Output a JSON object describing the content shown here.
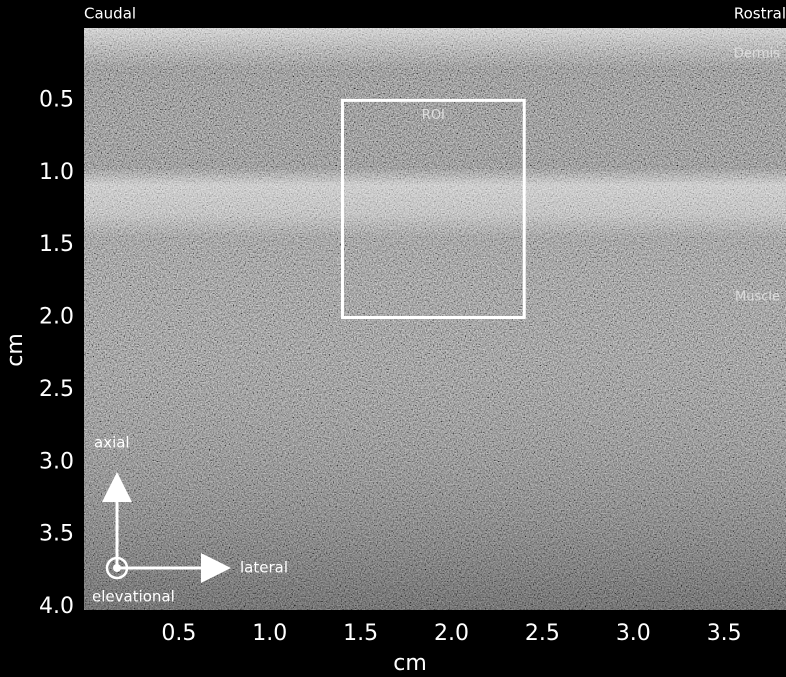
{
  "chart_data": {
    "type": "image",
    "xlabel": "cm",
    "ylabel": "cm",
    "xlim": [
      0,
      3.84
    ],
    "ylim": [
      0,
      4.0
    ],
    "xticks": [
      0.5,
      {
        "value": 1,
        "label": "1.0"
      },
      1.5,
      {
        "value": 2,
        "label": "2.0"
      },
      2.5,
      {
        "value": 3,
        "label": "3.0"
      },
      3.5
    ],
    "yticks": [
      0.5,
      {
        "value": 1,
        "label": "1.0"
      },
      1.5,
      {
        "value": 2,
        "label": "2.0"
      },
      2.5,
      {
        "value": 3,
        "label": "3.0"
      },
      3.5,
      {
        "value": 4,
        "label": "4.0"
      }
    ],
    "y_inverted": true,
    "roi": {
      "label": "ROI",
      "x": [
        1.4,
        2.4
      ],
      "y": [
        0.5,
        2.0
      ]
    },
    "annotations": {
      "caudal": "Caudal",
      "rostral": "Rostral",
      "dermis": "Dermis",
      "muscle": "Muscle",
      "axial": "axial",
      "lateral": "lateral",
      "elevational": "elevational"
    }
  }
}
